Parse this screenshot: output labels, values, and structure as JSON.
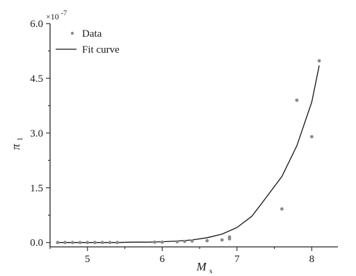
{
  "chart_data": {
    "type": "scatter",
    "title": "",
    "xlabel": {
      "main": "M",
      "sub": "s"
    },
    "ylabel": {
      "main": "π",
      "sub": "1"
    },
    "y_multiplier_label": {
      "base": "×10",
      "exp": "-7"
    },
    "xlim": [
      4.5,
      8.35
    ],
    "ylim": [
      -0.12,
      6.0
    ],
    "x_ticks": [
      5,
      6,
      7,
      8
    ],
    "x_tick_labels": [
      "5",
      "6",
      "7",
      "8"
    ],
    "y_ticks": [
      0.0,
      1.5,
      3.0,
      4.5,
      6.0
    ],
    "y_tick_labels": [
      "0.0",
      "1.5",
      "3.0",
      "4.5",
      "6.0"
    ],
    "legend": {
      "position": "top-left",
      "entries": [
        {
          "label": "Data",
          "marker": "dot"
        },
        {
          "label": "Fit curve",
          "marker": "line"
        }
      ]
    },
    "series": [
      {
        "name": "Data",
        "kind": "points",
        "color": "#8a8a8a",
        "x": [
          4.6,
          4.7,
          4.8,
          4.9,
          5.0,
          5.1,
          5.2,
          5.3,
          5.4,
          5.9,
          6.0,
          6.2,
          6.3,
          6.4,
          6.6,
          6.8,
          6.9,
          6.9,
          7.6,
          7.8,
          8.0,
          8.1
        ],
        "y": [
          0.0,
          0.0,
          0.0,
          0.0,
          0.0,
          0.0,
          0.0,
          0.0,
          0.0,
          0.01,
          0.01,
          0.02,
          0.03,
          0.04,
          0.05,
          0.07,
          0.1,
          0.15,
          0.92,
          3.9,
          2.9,
          4.98
        ]
      },
      {
        "name": "Fit curve",
        "kind": "line",
        "color": "#111111",
        "x": [
          4.6,
          4.8,
          5.0,
          5.2,
          5.4,
          5.6,
          5.8,
          6.0,
          6.2,
          6.4,
          6.6,
          6.8,
          7.0,
          7.2,
          7.4,
          7.6,
          7.8,
          8.0,
          8.1
        ],
        "y": [
          0.0,
          0.0,
          0.0,
          0.0,
          0.0,
          0.01,
          0.01,
          0.02,
          0.04,
          0.07,
          0.13,
          0.23,
          0.41,
          0.72,
          1.26,
          1.81,
          2.65,
          3.85,
          4.85
        ]
      }
    ]
  }
}
